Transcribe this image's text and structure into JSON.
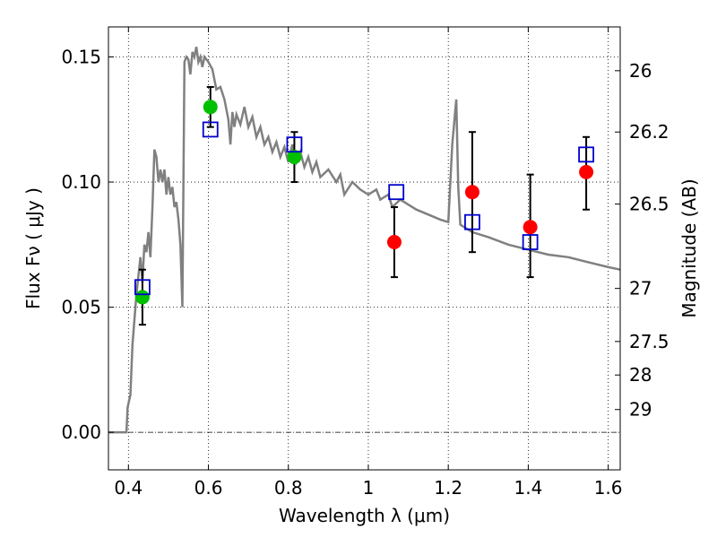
{
  "chart_data": {
    "type": "scatter",
    "title": "",
    "xlabel": "Wavelength  λ (μm)",
    "ylabel": "Flux  Fν  ( μJy )",
    "ylabel_right": "Magnitude (AB)",
    "xlim": [
      0.35,
      1.63
    ],
    "ylim": [
      -0.015,
      0.162
    ],
    "grid": true,
    "grid_style": "dotted",
    "x_ticks": [
      {
        "value": 0.4,
        "label": "0.4"
      },
      {
        "value": 0.6,
        "label": "0.6"
      },
      {
        "value": 0.8,
        "label": "0.8"
      },
      {
        "value": 1.0,
        "label": "1"
      },
      {
        "value": 1.2,
        "label": "1.2"
      },
      {
        "value": 1.4,
        "label": "1.4"
      },
      {
        "value": 1.6,
        "label": "1.6"
      }
    ],
    "y_ticks": [
      {
        "value": 0.0,
        "label": "0.00"
      },
      {
        "value": 0.05,
        "label": "0.05"
      },
      {
        "value": 0.1,
        "label": "0.10"
      },
      {
        "value": 0.15,
        "label": "0.15"
      }
    ],
    "right_ticks": [
      {
        "flux": 0.1445,
        "label": "26"
      },
      {
        "flux": 0.12,
        "label": "26.2"
      },
      {
        "flux": 0.0912,
        "label": "26.5"
      },
      {
        "flux": 0.0575,
        "label": "27"
      },
      {
        "flux": 0.0363,
        "label": "27.5"
      },
      {
        "flux": 0.0229,
        "label": "28"
      },
      {
        "flux": 0.0091,
        "label": "29"
      }
    ],
    "colors": {
      "model": "#808080",
      "green": "#00c000",
      "red": "#ff0000",
      "square": "#0000cc",
      "errorbar": "#000000"
    },
    "series": [
      {
        "kind": "model_spectrum",
        "x": [
          0.35,
          0.395,
          0.398,
          0.405,
          0.41,
          0.42,
          0.43,
          0.435,
          0.44,
          0.445,
          0.45,
          0.455,
          0.46,
          0.465,
          0.47,
          0.475,
          0.48,
          0.485,
          0.49,
          0.495,
          0.5,
          0.505,
          0.51,
          0.515,
          0.52,
          0.525,
          0.53,
          0.535,
          0.54,
          0.545,
          0.55,
          0.555,
          0.56,
          0.565,
          0.57,
          0.575,
          0.58,
          0.585,
          0.59,
          0.6,
          0.61,
          0.62,
          0.63,
          0.64,
          0.65,
          0.655,
          0.66,
          0.665,
          0.67,
          0.68,
          0.69,
          0.7,
          0.71,
          0.72,
          0.73,
          0.74,
          0.75,
          0.76,
          0.77,
          0.78,
          0.79,
          0.8,
          0.81,
          0.82,
          0.83,
          0.84,
          0.85,
          0.86,
          0.87,
          0.88,
          0.9,
          0.92,
          0.93,
          0.94,
          0.96,
          0.98,
          1.0,
          1.02,
          1.03,
          1.05,
          1.06,
          1.08,
          1.1,
          1.12,
          1.15,
          1.18,
          1.2,
          1.21,
          1.22,
          1.225,
          1.23,
          1.24,
          1.26,
          1.3,
          1.35,
          1.4,
          1.45,
          1.5,
          1.55,
          1.6,
          1.63
        ],
        "y": [
          0.0,
          0.0,
          0.01,
          0.015,
          0.035,
          0.055,
          0.07,
          0.06,
          0.075,
          0.072,
          0.08,
          0.07,
          0.09,
          0.113,
          0.11,
          0.1,
          0.105,
          0.1,
          0.105,
          0.095,
          0.102,
          0.095,
          0.098,
          0.09,
          0.092,
          0.085,
          0.075,
          0.05,
          0.148,
          0.15,
          0.149,
          0.143,
          0.152,
          0.15,
          0.154,
          0.148,
          0.15,
          0.146,
          0.15,
          0.148,
          0.145,
          0.137,
          0.138,
          0.133,
          0.125,
          0.115,
          0.128,
          0.122,
          0.127,
          0.123,
          0.13,
          0.122,
          0.126,
          0.118,
          0.122,
          0.115,
          0.118,
          0.112,
          0.116,
          0.11,
          0.114,
          0.108,
          0.115,
          0.108,
          0.112,
          0.106,
          0.11,
          0.104,
          0.108,
          0.102,
          0.105,
          0.1,
          0.103,
          0.095,
          0.1,
          0.097,
          0.095,
          0.097,
          0.093,
          0.095,
          0.09,
          0.093,
          0.091,
          0.089,
          0.087,
          0.085,
          0.084,
          0.115,
          0.133,
          0.098,
          0.083,
          0.082,
          0.08,
          0.078,
          0.075,
          0.073,
          0.071,
          0.07,
          0.068,
          0.066,
          0.065
        ]
      },
      {
        "kind": "green_points",
        "points": [
          {
            "x": 0.435,
            "y": 0.054
          },
          {
            "x": 0.605,
            "y": 0.13
          },
          {
            "x": 0.815,
            "y": 0.11
          }
        ]
      },
      {
        "kind": "red_points",
        "points": [
          {
            "x": 1.065,
            "y": 0.076
          },
          {
            "x": 1.26,
            "y": 0.096
          },
          {
            "x": 1.405,
            "y": 0.082
          },
          {
            "x": 1.545,
            "y": 0.104
          }
        ]
      },
      {
        "kind": "model_squares",
        "points": [
          {
            "x": 0.435,
            "y": 0.058
          },
          {
            "x": 0.605,
            "y": 0.121
          },
          {
            "x": 0.815,
            "y": 0.115
          },
          {
            "x": 1.07,
            "y": 0.096
          },
          {
            "x": 1.26,
            "y": 0.084
          },
          {
            "x": 1.405,
            "y": 0.076
          },
          {
            "x": 1.545,
            "y": 0.111
          }
        ]
      },
      {
        "kind": "error_bars",
        "bars": [
          {
            "x": 0.435,
            "low": 0.043,
            "high": 0.065
          },
          {
            "x": 0.605,
            "low": 0.122,
            "high": 0.138
          },
          {
            "x": 0.815,
            "low": 0.1,
            "high": 0.12
          },
          {
            "x": 1.065,
            "low": 0.062,
            "high": 0.09
          },
          {
            "x": 1.26,
            "low": 0.072,
            "high": 0.12
          },
          {
            "x": 1.405,
            "low": 0.062,
            "high": 0.103
          },
          {
            "x": 1.545,
            "low": 0.089,
            "high": 0.118
          }
        ]
      }
    ]
  }
}
